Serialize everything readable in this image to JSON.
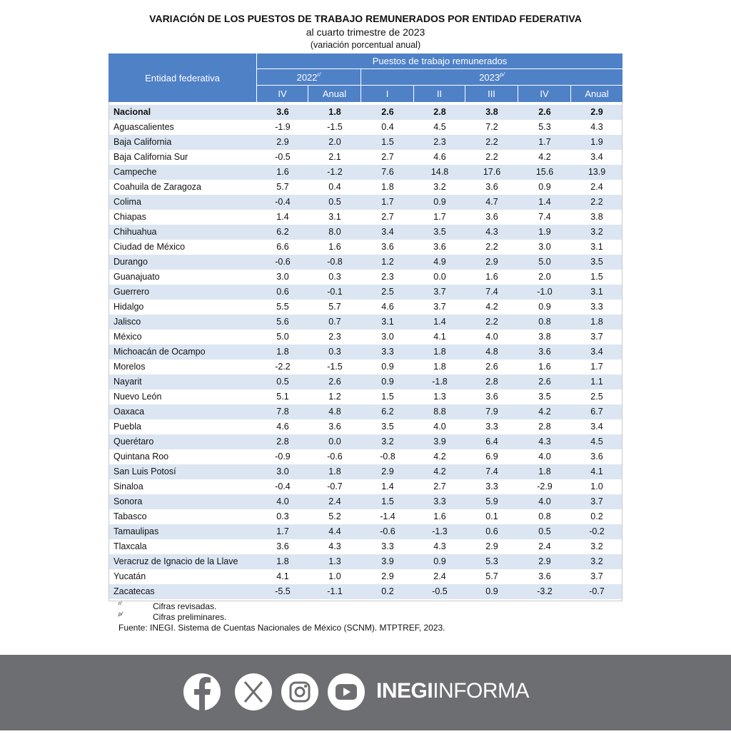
{
  "header": {
    "title": "VARIACIÓN DE LOS PUESTOS DE TRABAJO REMUNERADOS POR ENTIDAD FEDERATIVA",
    "subtitle": "al cuarto trimestre de 2023",
    "unit": "(variación porcentual anual)"
  },
  "table": {
    "row_header": "Entidad federativa",
    "group": "Puestos de trabajo remunerados",
    "years": [
      {
        "label": "2022",
        "mark": "r/"
      },
      {
        "label": "2023",
        "mark": "p/"
      }
    ],
    "columns": [
      "IV",
      "Anual",
      "I",
      "II",
      "III",
      "IV",
      "Anual"
    ],
    "rows": [
      [
        "Nacional",
        "3.6",
        "1.8",
        "2.6",
        "2.8",
        "3.8",
        "2.6",
        "2.9"
      ],
      [
        "Aguascalientes",
        "-1.9",
        "-1.5",
        "0.4",
        "4.5",
        "7.2",
        "5.3",
        "4.3"
      ],
      [
        "Baja California",
        "2.9",
        "2.0",
        "1.5",
        "2.3",
        "2.2",
        "1.7",
        "1.9"
      ],
      [
        "Baja California Sur",
        "-0.5",
        "2.1",
        "2.7",
        "4.6",
        "2.2",
        "4.2",
        "3.4"
      ],
      [
        "Campeche",
        "1.6",
        "-1.2",
        "7.6",
        "14.8",
        "17.6",
        "15.6",
        "13.9"
      ],
      [
        "Coahuila de Zaragoza",
        "5.7",
        "0.4",
        "1.8",
        "3.2",
        "3.6",
        "0.9",
        "2.4"
      ],
      [
        "Colima",
        "-0.4",
        "0.5",
        "1.7",
        "0.9",
        "4.7",
        "1.4",
        "2.2"
      ],
      [
        "Chiapas",
        "1.4",
        "3.1",
        "2.7",
        "1.7",
        "3.6",
        "7.4",
        "3.8"
      ],
      [
        "Chihuahua",
        "6.2",
        "8.0",
        "3.4",
        "3.5",
        "4.3",
        "1.9",
        "3.2"
      ],
      [
        "Ciudad de México",
        "6.6",
        "1.6",
        "3.6",
        "3.6",
        "2.2",
        "3.0",
        "3.1"
      ],
      [
        "Durango",
        "-0.6",
        "-0.8",
        "1.2",
        "4.9",
        "2.9",
        "5.0",
        "3.5"
      ],
      [
        "Guanajuato",
        "3.0",
        "0.3",
        "2.3",
        "0.0",
        "1.6",
        "2.0",
        "1.5"
      ],
      [
        "Guerrero",
        "0.6",
        "-0.1",
        "2.5",
        "3.7",
        "7.4",
        "-1.0",
        "3.1"
      ],
      [
        "Hidalgo",
        "5.5",
        "5.7",
        "4.6",
        "3.7",
        "4.2",
        "0.9",
        "3.3"
      ],
      [
        "Jalisco",
        "5.6",
        "0.7",
        "3.1",
        "1.4",
        "2.2",
        "0.8",
        "1.8"
      ],
      [
        "México",
        "5.0",
        "2.3",
        "3.0",
        "4.1",
        "4.0",
        "3.8",
        "3.7"
      ],
      [
        "Michoacán de Ocampo",
        "1.8",
        "0.3",
        "3.3",
        "1.8",
        "4.8",
        "3.6",
        "3.4"
      ],
      [
        "Morelos",
        "-2.2",
        "-1.5",
        "0.9",
        "1.8",
        "2.6",
        "1.6",
        "1.7"
      ],
      [
        "Nayarit",
        "0.5",
        "2.6",
        "0.9",
        "-1.8",
        "2.8",
        "2.6",
        "1.1"
      ],
      [
        "Nuevo León",
        "5.1",
        "1.2",
        "1.5",
        "1.3",
        "3.6",
        "3.5",
        "2.5"
      ],
      [
        "Oaxaca",
        "7.8",
        "4.8",
        "6.2",
        "8.8",
        "7.9",
        "4.2",
        "6.7"
      ],
      [
        "Puebla",
        "4.6",
        "3.6",
        "3.5",
        "4.0",
        "3.3",
        "2.8",
        "3.4"
      ],
      [
        "Querétaro",
        "2.8",
        "0.0",
        "3.2",
        "3.9",
        "6.4",
        "4.3",
        "4.5"
      ],
      [
        "Quintana Roo",
        "-0.9",
        "-0.6",
        "-0.8",
        "4.2",
        "6.9",
        "4.0",
        "3.6"
      ],
      [
        "San Luis Potosí",
        "3.0",
        "1.8",
        "2.9",
        "4.2",
        "7.4",
        "1.8",
        "4.1"
      ],
      [
        "Sinaloa",
        "-0.4",
        "-0.7",
        "1.4",
        "2.7",
        "3.3",
        "-2.9",
        "1.0"
      ],
      [
        "Sonora",
        "4.0",
        "2.4",
        "1.5",
        "3.3",
        "5.9",
        "4.0",
        "3.7"
      ],
      [
        "Tabasco",
        "0.3",
        "5.2",
        "-1.4",
        "1.6",
        "0.1",
        "0.8",
        "0.2"
      ],
      [
        "Tamaulipas",
        "1.7",
        "4.4",
        "-0.6",
        "-1.3",
        "0.6",
        "0.5",
        "-0.2"
      ],
      [
        "Tlaxcala",
        "3.6",
        "4.3",
        "3.3",
        "4.3",
        "2.9",
        "2.4",
        "3.2"
      ],
      [
        "Veracruz de Ignacio de la Llave",
        "1.8",
        "1.3",
        "3.9",
        "0.9",
        "5.3",
        "2.9",
        "3.2"
      ],
      [
        "Yucatán",
        "4.1",
        "1.0",
        "2.9",
        "2.4",
        "5.7",
        "3.6",
        "3.7"
      ],
      [
        "Zacatecas",
        "-5.5",
        "-1.1",
        "0.2",
        "-0.5",
        "0.9",
        "-3.2",
        "-0.7"
      ]
    ]
  },
  "notes": [
    {
      "mark": "r/",
      "text": "Cifras revisadas."
    },
    {
      "mark": "p/",
      "text": "Cifras preliminares."
    }
  ],
  "source": "Fuente: INEGI. Sistema de Cuentas Nacionales de México (SCNM). MTPTREF, 2023.",
  "footer": {
    "brand_bold": "INEGI",
    "brand": "INFORMA"
  }
}
